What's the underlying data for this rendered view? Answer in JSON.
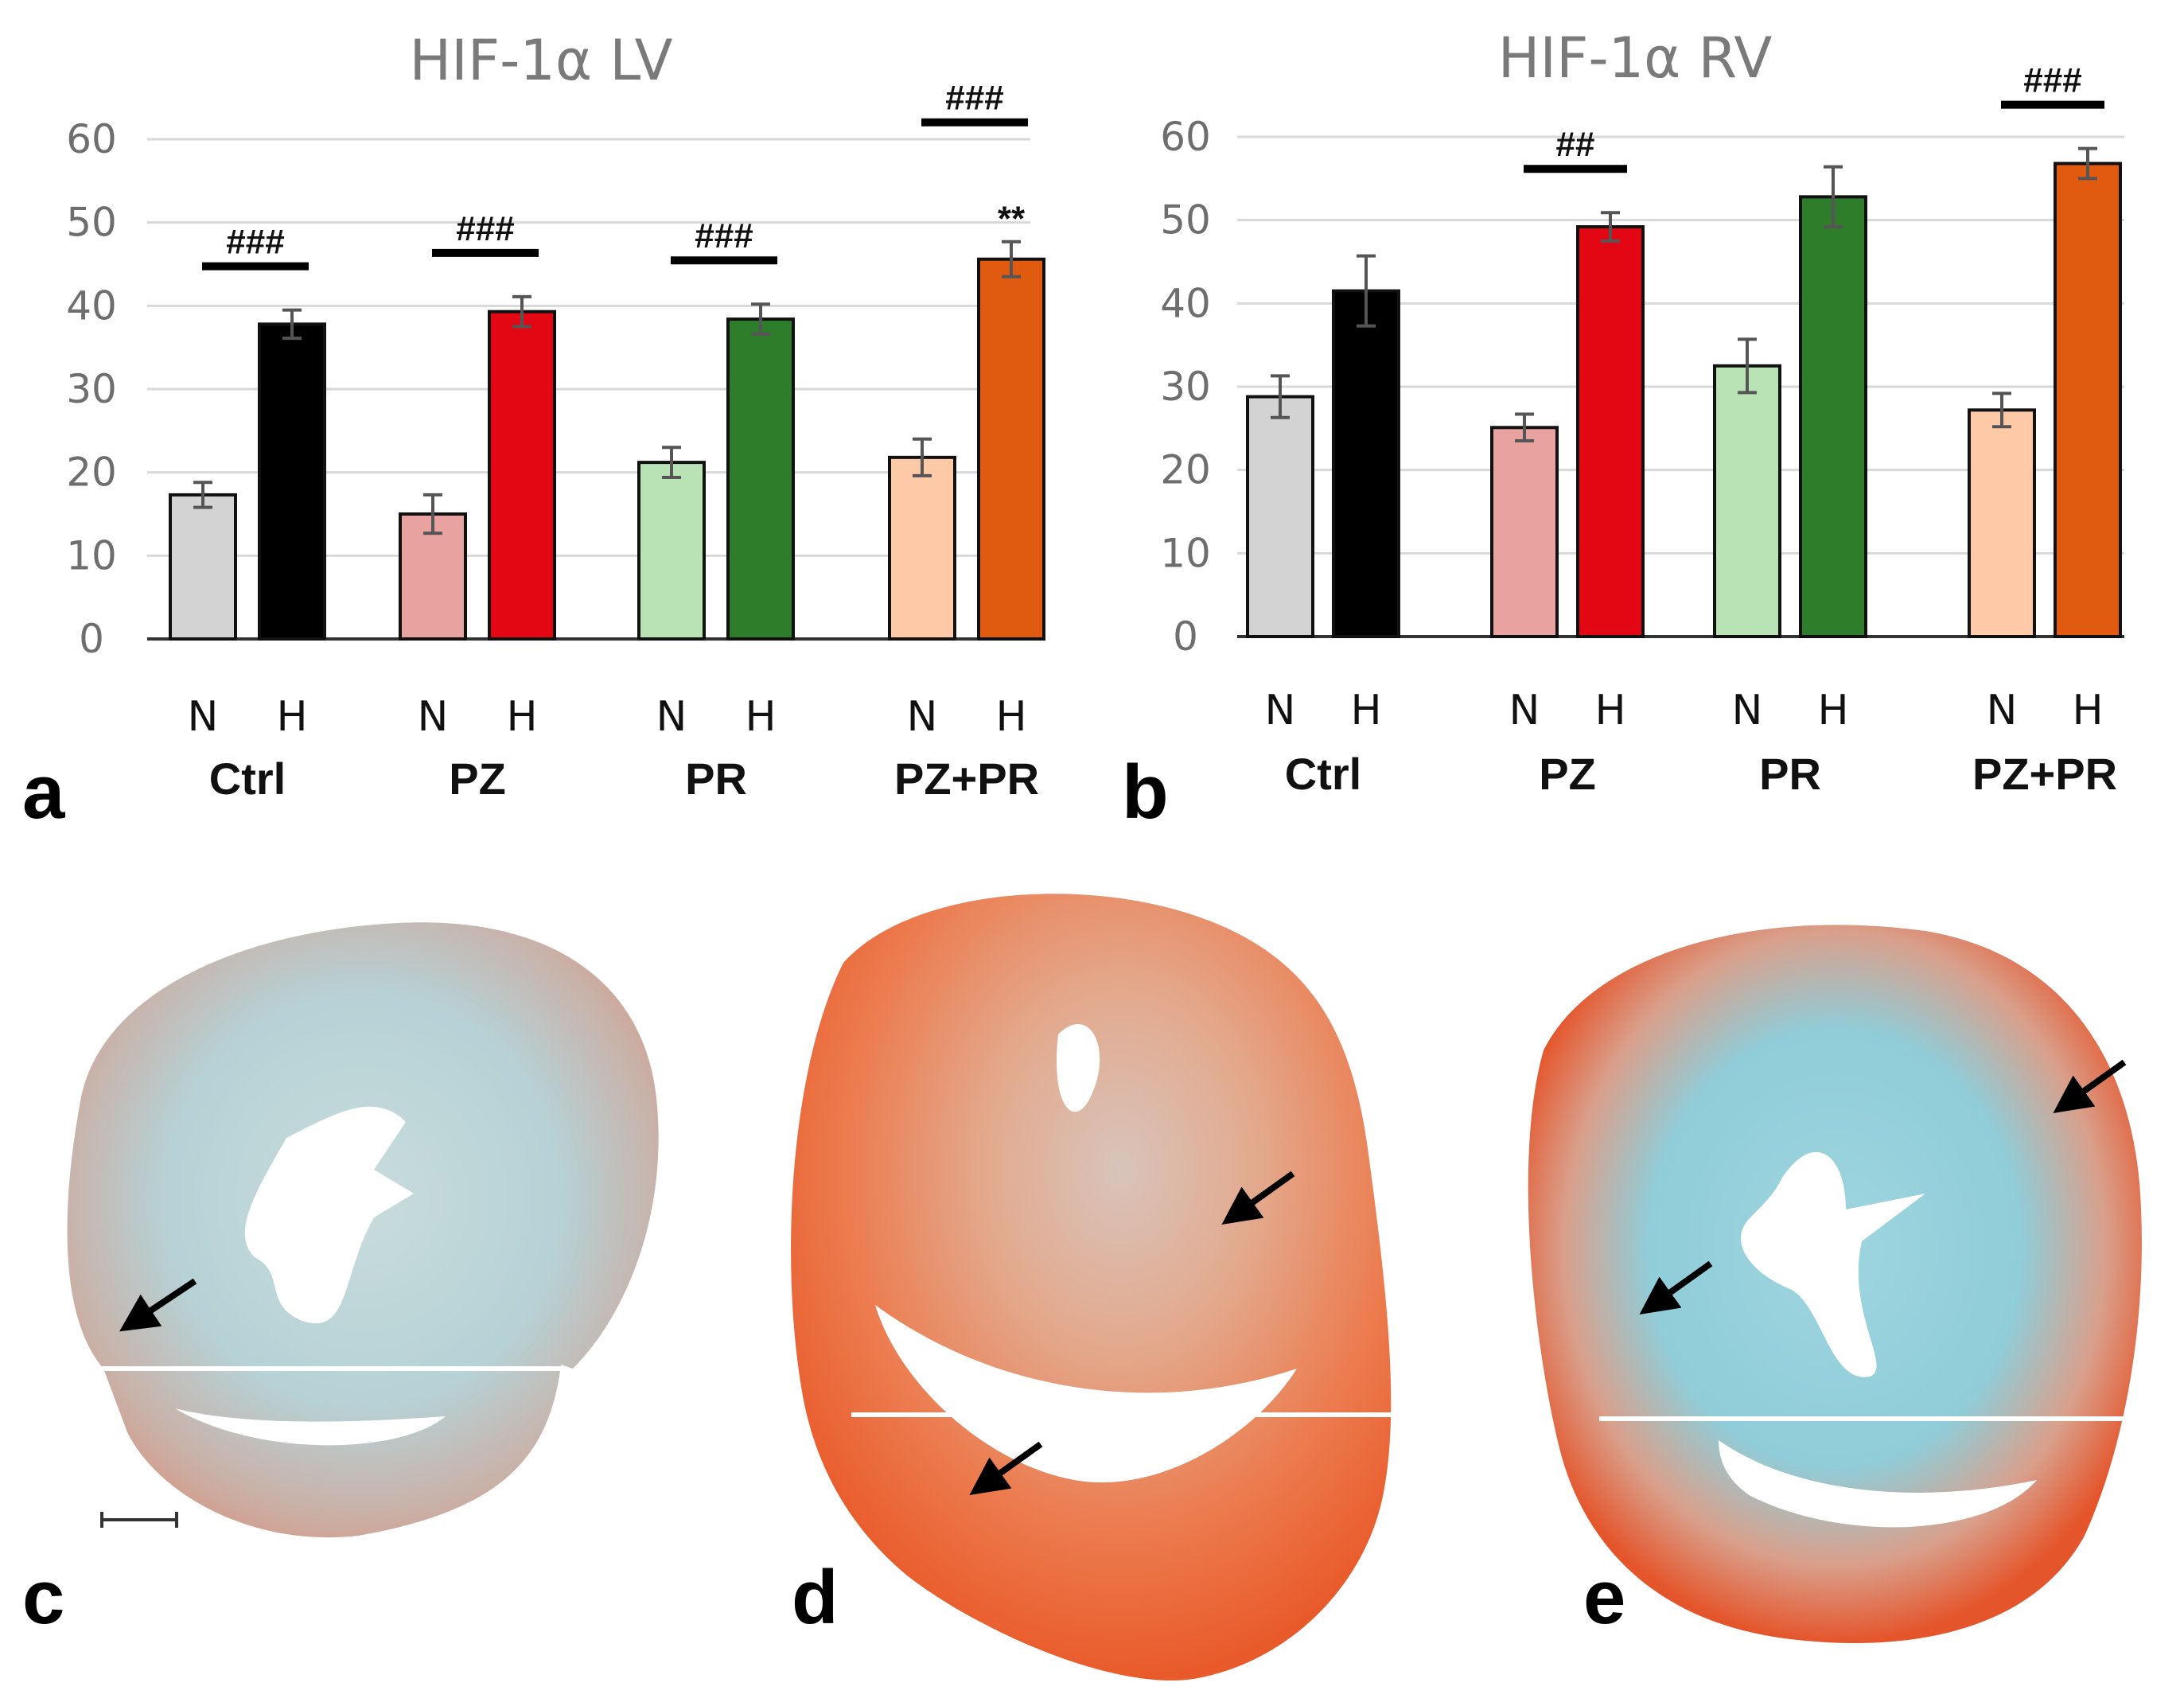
{
  "colors": {
    "ctrl_n": "#d3d3d3",
    "ctrl_h": "#000000",
    "pz_n": "#e8a3a0",
    "pz_h": "#e30613",
    "pr_n": "#b9e3b4",
    "pr_h": "#2e7d2a",
    "pzpr_n": "#fdc9a6",
    "pzpr_h": "#e05a10",
    "grid": "#d9d9d9",
    "axis": "#333333",
    "error": "#555555"
  },
  "chart_data": [
    {
      "panel": "a",
      "type": "bar",
      "title": "HIF-1α LV",
      "ylim": [
        0,
        60
      ],
      "yticks": [
        "0",
        "10",
        "20",
        "30",
        "40",
        "50",
        "60"
      ],
      "groups": [
        "Ctrl",
        "PZ",
        "PR",
        "PZ+PR"
      ],
      "bar_labels": [
        "N",
        "H"
      ],
      "series": [
        {
          "name": "N",
          "values": [
            17.3,
            15.0,
            21.2,
            21.8
          ],
          "errors": [
            1.5,
            2.3,
            1.8,
            2.2
          ]
        },
        {
          "name": "H",
          "values": [
            37.8,
            39.3,
            38.4,
            45.6
          ],
          "errors": [
            1.7,
            1.8,
            1.8,
            2.1
          ]
        }
      ],
      "significance": [
        {
          "group": "Ctrl",
          "label": "###"
        },
        {
          "group": "PZ",
          "label": "###"
        },
        {
          "group": "PR",
          "label": "###"
        },
        {
          "group": "PZ+PR",
          "label": "###"
        }
      ],
      "annotations": [
        {
          "group": "PZ+PR",
          "bar": "H",
          "label": "**"
        }
      ]
    },
    {
      "panel": "b",
      "type": "bar",
      "title": "HIF-1α RV",
      "ylim": [
        0,
        60
      ],
      "yticks": [
        "0",
        "10",
        "20",
        "30",
        "40",
        "50",
        "60"
      ],
      "groups": [
        "Ctrl",
        "PZ",
        "PR",
        "PZ+PR"
      ],
      "bar_labels": [
        "N",
        "H"
      ],
      "series": [
        {
          "name": "N",
          "values": [
            28.8,
            25.1,
            32.5,
            27.2
          ],
          "errors": [
            2.5,
            1.6,
            3.2,
            2.0
          ]
        },
        {
          "name": "H",
          "values": [
            41.5,
            49.2,
            52.8,
            56.8
          ],
          "errors": [
            4.2,
            1.7,
            3.6,
            1.8
          ]
        }
      ],
      "significance": [
        {
          "group": "PZ",
          "label": "##"
        },
        {
          "group": "PZ+PR",
          "label": "###"
        }
      ],
      "annotations": []
    }
  ],
  "panels": {
    "a": "a",
    "b": "b",
    "c": "c",
    "d": "d",
    "e": "e"
  }
}
